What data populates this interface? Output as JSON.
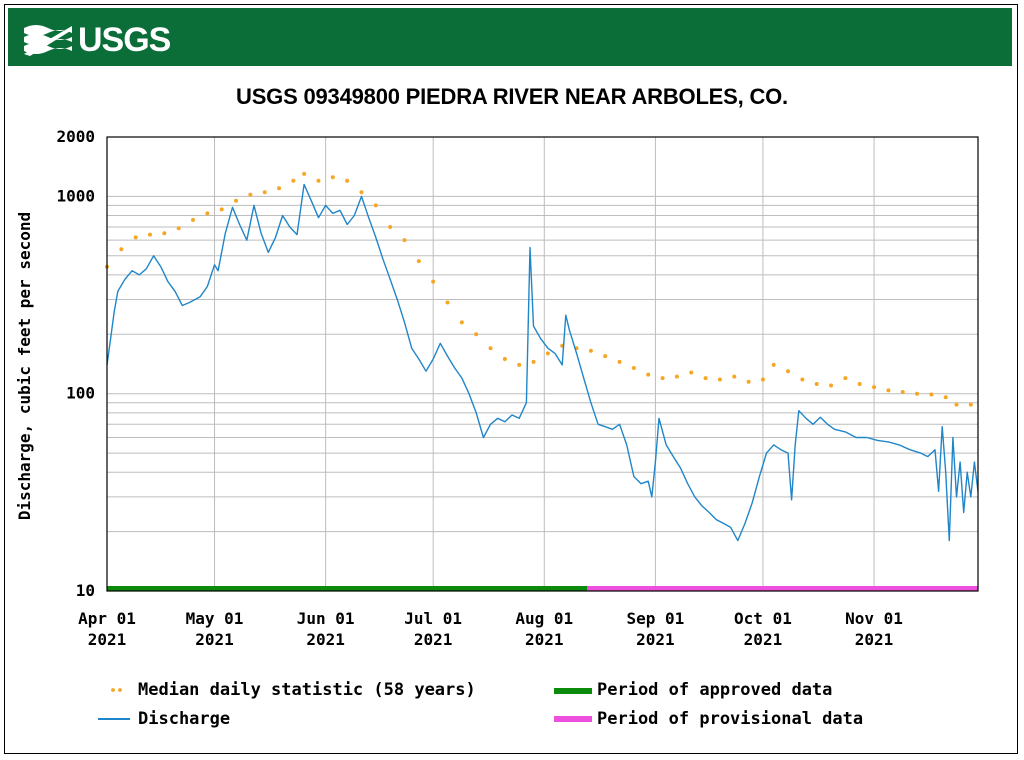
{
  "header": {
    "logo_text": "USGS"
  },
  "chart_data": {
    "type": "line",
    "title": "USGS 09349800 PIEDRA RIVER NEAR ARBOLES, CO.",
    "ylabel": "Discharge, cubic feet per second",
    "xlabel": "",
    "yscale": "log",
    "ylim": [
      10,
      2000
    ],
    "xlim": [
      "2021-04-01",
      "2021-11-30"
    ],
    "y_tick_labels": [
      "2000",
      "1000",
      "100",
      "10"
    ],
    "y_tick_values": [
      2000,
      1000,
      100,
      10
    ],
    "x_ticks": [
      {
        "date": "2021-04-01",
        "line1": "Apr 01",
        "line2": "2021"
      },
      {
        "date": "2021-05-01",
        "line1": "May 01",
        "line2": "2021"
      },
      {
        "date": "2021-06-01",
        "line1": "Jun 01",
        "line2": "2021"
      },
      {
        "date": "2021-07-01",
        "line1": "Jul 01",
        "line2": "2021"
      },
      {
        "date": "2021-08-01",
        "line1": "Aug 01",
        "line2": "2021"
      },
      {
        "date": "2021-09-01",
        "line1": "Sep 01",
        "line2": "2021"
      },
      {
        "date": "2021-10-01",
        "line1": "Oct 01",
        "line2": "2021"
      },
      {
        "date": "2021-11-01",
        "line1": "Nov 01",
        "line2": "2021"
      }
    ],
    "grid": true,
    "legend_position": "bottom",
    "series": [
      {
        "name": "Median daily statistic (58 years)",
        "style": "dots",
        "color": "#f5a623",
        "points": [
          [
            "2021-04-01",
            440
          ],
          [
            "2021-04-05",
            540
          ],
          [
            "2021-04-09",
            620
          ],
          [
            "2021-04-13",
            640
          ],
          [
            "2021-04-17",
            650
          ],
          [
            "2021-04-21",
            690
          ],
          [
            "2021-04-25",
            760
          ],
          [
            "2021-04-29",
            820
          ],
          [
            "2021-05-03",
            860
          ],
          [
            "2021-05-07",
            950
          ],
          [
            "2021-05-11",
            1020
          ],
          [
            "2021-05-15",
            1050
          ],
          [
            "2021-05-19",
            1100
          ],
          [
            "2021-05-23",
            1200
          ],
          [
            "2021-05-26",
            1300
          ],
          [
            "2021-05-30",
            1200
          ],
          [
            "2021-06-03",
            1250
          ],
          [
            "2021-06-07",
            1200
          ],
          [
            "2021-06-11",
            1050
          ],
          [
            "2021-06-15",
            900
          ],
          [
            "2021-06-19",
            700
          ],
          [
            "2021-06-23",
            600
          ],
          [
            "2021-06-27",
            470
          ],
          [
            "2021-07-01",
            370
          ],
          [
            "2021-07-05",
            290
          ],
          [
            "2021-07-09",
            230
          ],
          [
            "2021-07-13",
            200
          ],
          [
            "2021-07-17",
            170
          ],
          [
            "2021-07-21",
            150
          ],
          [
            "2021-07-25",
            140
          ],
          [
            "2021-07-29",
            145
          ],
          [
            "2021-08-02",
            160
          ],
          [
            "2021-08-06",
            175
          ],
          [
            "2021-08-10",
            170
          ],
          [
            "2021-08-14",
            165
          ],
          [
            "2021-08-18",
            155
          ],
          [
            "2021-08-22",
            145
          ],
          [
            "2021-08-26",
            135
          ],
          [
            "2021-08-30",
            125
          ],
          [
            "2021-09-03",
            120
          ],
          [
            "2021-09-07",
            122
          ],
          [
            "2021-09-11",
            128
          ],
          [
            "2021-09-15",
            120
          ],
          [
            "2021-09-19",
            118
          ],
          [
            "2021-09-23",
            122
          ],
          [
            "2021-09-27",
            115
          ],
          [
            "2021-10-01",
            118
          ],
          [
            "2021-10-04",
            140
          ],
          [
            "2021-10-08",
            130
          ],
          [
            "2021-10-12",
            118
          ],
          [
            "2021-10-16",
            112
          ],
          [
            "2021-10-20",
            110
          ],
          [
            "2021-10-24",
            120
          ],
          [
            "2021-10-28",
            112
          ],
          [
            "2021-11-01",
            108
          ],
          [
            "2021-11-05",
            104
          ],
          [
            "2021-11-09",
            102
          ],
          [
            "2021-11-13",
            100
          ],
          [
            "2021-11-17",
            99
          ],
          [
            "2021-11-21",
            96
          ],
          [
            "2021-11-24",
            88
          ],
          [
            "2021-11-28",
            88
          ]
        ]
      },
      {
        "name": "Discharge",
        "style": "line",
        "color": "#1f86c9",
        "points": [
          [
            "2021-04-01",
            140
          ],
          [
            "2021-04-02",
            190
          ],
          [
            "2021-04-03",
            260
          ],
          [
            "2021-04-04",
            330
          ],
          [
            "2021-04-06",
            380
          ],
          [
            "2021-04-08",
            420
          ],
          [
            "2021-04-10",
            400
          ],
          [
            "2021-04-12",
            430
          ],
          [
            "2021-04-14",
            500
          ],
          [
            "2021-04-16",
            440
          ],
          [
            "2021-04-18",
            370
          ],
          [
            "2021-04-20",
            330
          ],
          [
            "2021-04-22",
            280
          ],
          [
            "2021-04-24",
            290
          ],
          [
            "2021-04-27",
            310
          ],
          [
            "2021-04-29",
            350
          ],
          [
            "2021-05-01",
            450
          ],
          [
            "2021-05-02",
            420
          ],
          [
            "2021-05-04",
            650
          ],
          [
            "2021-05-06",
            880
          ],
          [
            "2021-05-08",
            720
          ],
          [
            "2021-05-10",
            600
          ],
          [
            "2021-05-12",
            900
          ],
          [
            "2021-05-14",
            650
          ],
          [
            "2021-05-16",
            520
          ],
          [
            "2021-05-18",
            620
          ],
          [
            "2021-05-20",
            800
          ],
          [
            "2021-05-22",
            700
          ],
          [
            "2021-05-24",
            640
          ],
          [
            "2021-05-26",
            1150
          ],
          [
            "2021-05-28",
            950
          ],
          [
            "2021-05-30",
            780
          ],
          [
            "2021-06-01",
            900
          ],
          [
            "2021-06-03",
            820
          ],
          [
            "2021-06-05",
            850
          ],
          [
            "2021-06-07",
            720
          ],
          [
            "2021-06-09",
            800
          ],
          [
            "2021-06-11",
            1000
          ],
          [
            "2021-06-13",
            780
          ],
          [
            "2021-06-15",
            620
          ],
          [
            "2021-06-17",
            480
          ],
          [
            "2021-06-19",
            380
          ],
          [
            "2021-06-21",
            300
          ],
          [
            "2021-06-23",
            230
          ],
          [
            "2021-06-25",
            170
          ],
          [
            "2021-06-27",
            150
          ],
          [
            "2021-06-29",
            130
          ],
          [
            "2021-07-01",
            150
          ],
          [
            "2021-07-03",
            180
          ],
          [
            "2021-07-05",
            155
          ],
          [
            "2021-07-07",
            135
          ],
          [
            "2021-07-09",
            120
          ],
          [
            "2021-07-11",
            100
          ],
          [
            "2021-07-13",
            80
          ],
          [
            "2021-07-15",
            60
          ],
          [
            "2021-07-17",
            70
          ],
          [
            "2021-07-19",
            75
          ],
          [
            "2021-07-21",
            72
          ],
          [
            "2021-07-23",
            78
          ],
          [
            "2021-07-25",
            75
          ],
          [
            "2021-07-27",
            90
          ],
          [
            "2021-07-28",
            550
          ],
          [
            "2021-07-29",
            220
          ],
          [
            "2021-07-31",
            190
          ],
          [
            "2021-08-02",
            170
          ],
          [
            "2021-08-04",
            160
          ],
          [
            "2021-08-06",
            140
          ],
          [
            "2021-08-07",
            250
          ],
          [
            "2021-08-08",
            210
          ],
          [
            "2021-08-10",
            160
          ],
          [
            "2021-08-12",
            120
          ],
          [
            "2021-08-14",
            90
          ],
          [
            "2021-08-16",
            70
          ],
          [
            "2021-08-18",
            68
          ],
          [
            "2021-08-20",
            66
          ],
          [
            "2021-08-22",
            70
          ],
          [
            "2021-08-24",
            55
          ],
          [
            "2021-08-26",
            38
          ],
          [
            "2021-08-28",
            35
          ],
          [
            "2021-08-30",
            36
          ],
          [
            "2021-08-31",
            30
          ],
          [
            "2021-09-01",
            45
          ],
          [
            "2021-09-02",
            75
          ],
          [
            "2021-09-04",
            55
          ],
          [
            "2021-09-06",
            48
          ],
          [
            "2021-09-08",
            42
          ],
          [
            "2021-09-10",
            35
          ],
          [
            "2021-09-12",
            30
          ],
          [
            "2021-09-14",
            27
          ],
          [
            "2021-09-16",
            25
          ],
          [
            "2021-09-18",
            23
          ],
          [
            "2021-09-20",
            22
          ],
          [
            "2021-09-22",
            21
          ],
          [
            "2021-09-24",
            18
          ],
          [
            "2021-09-26",
            22
          ],
          [
            "2021-09-28",
            28
          ],
          [
            "2021-09-30",
            38
          ],
          [
            "2021-10-02",
            50
          ],
          [
            "2021-10-04",
            55
          ],
          [
            "2021-10-06",
            52
          ],
          [
            "2021-10-08",
            50
          ],
          [
            "2021-10-09",
            29
          ],
          [
            "2021-10-10",
            55
          ],
          [
            "2021-10-11",
            82
          ],
          [
            "2021-10-13",
            75
          ],
          [
            "2021-10-15",
            70
          ],
          [
            "2021-10-17",
            76
          ],
          [
            "2021-10-19",
            70
          ],
          [
            "2021-10-21",
            66
          ],
          [
            "2021-10-24",
            64
          ],
          [
            "2021-10-27",
            60
          ],
          [
            "2021-10-30",
            60
          ],
          [
            "2021-11-02",
            58
          ],
          [
            "2021-11-05",
            57
          ],
          [
            "2021-11-08",
            55
          ],
          [
            "2021-11-11",
            52
          ],
          [
            "2021-11-14",
            50
          ],
          [
            "2021-11-16",
            48
          ],
          [
            "2021-11-18",
            52
          ],
          [
            "2021-11-19",
            32
          ],
          [
            "2021-11-20",
            68
          ],
          [
            "2021-11-21",
            40
          ],
          [
            "2021-11-22",
            18
          ],
          [
            "2021-11-23",
            60
          ],
          [
            "2021-11-24",
            30
          ],
          [
            "2021-11-25",
            45
          ],
          [
            "2021-11-26",
            25
          ],
          [
            "2021-11-27",
            40
          ],
          [
            "2021-11-28",
            30
          ],
          [
            "2021-11-29",
            45
          ],
          [
            "2021-11-30",
            32
          ]
        ]
      }
    ],
    "periods": [
      {
        "name": "Period of approved data",
        "color": "#0b8a0b",
        "start": "2021-04-01",
        "end": "2021-08-13"
      },
      {
        "name": "Period of provisional data",
        "color": "#ee4fdc",
        "start": "2021-08-13",
        "end": "2021-11-30"
      }
    ]
  },
  "legend": {
    "median": "Median daily statistic (58 years)",
    "discharge": "Discharge",
    "approved": "Period of approved data",
    "provisional": "Period of provisional data"
  }
}
